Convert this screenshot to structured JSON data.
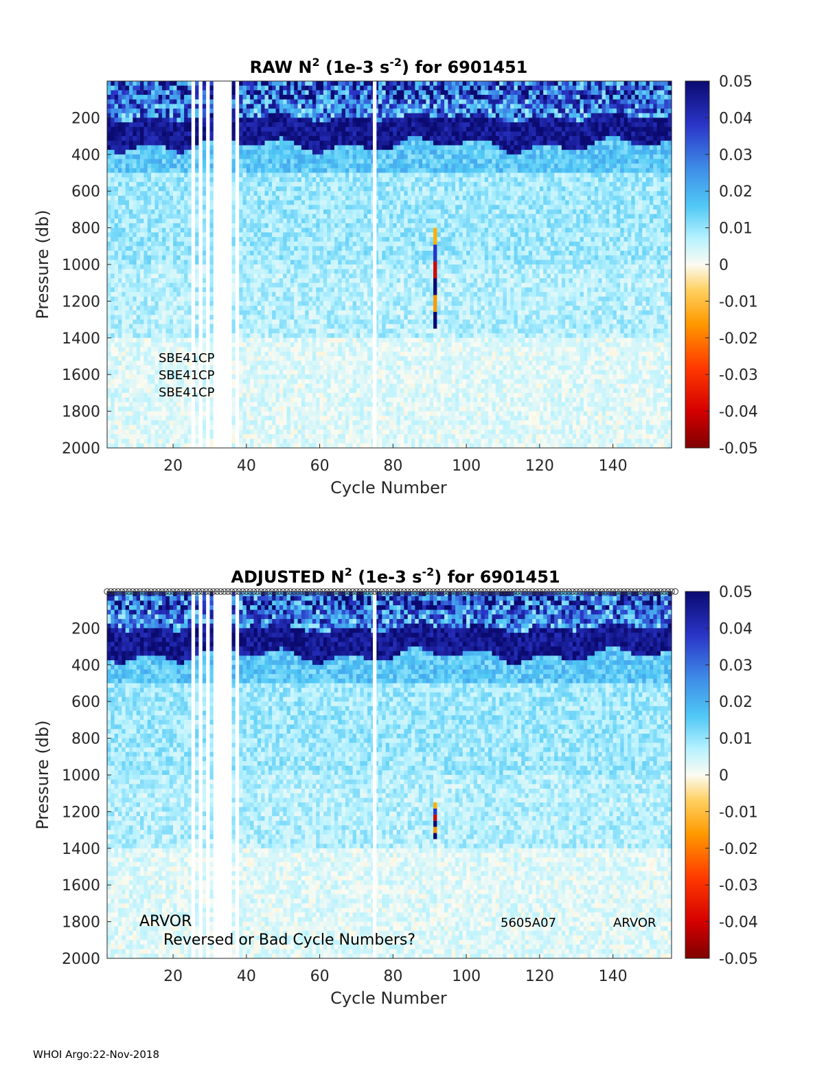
{
  "footer": "WHOI Argo:22-Nov-2018",
  "colorbar": {
    "ticks": [
      "0.05",
      "0.04",
      "0.03",
      "0.02",
      "0.01",
      "0",
      "-0.01",
      "-0.02",
      "-0.03",
      "-0.04",
      "-0.05"
    ],
    "range": [
      -0.05,
      0.05
    ]
  },
  "chart_data": [
    {
      "type": "heatmap",
      "title": {
        "prefix": "RAW N",
        "sup1": "2",
        "mid": " (1e-3 s",
        "sup2": "-2",
        "suffix": ") for 6901451"
      },
      "xlabel": "Cycle Number",
      "ylabel": "Pressure (db)",
      "xlim": [
        2,
        156
      ],
      "ylim": [
        0,
        2000
      ],
      "y_reversed": true,
      "xticks": [
        "20",
        "40",
        "60",
        "80",
        "100",
        "120",
        "140"
      ],
      "yticks": [
        "200",
        "400",
        "600",
        "800",
        "1000",
        "1200",
        "1400",
        "1600",
        "1800",
        "2000"
      ],
      "colormap": "blue-cyan-white-orange-red",
      "clim": [
        -0.05,
        0.05
      ],
      "features": {
        "strong_stratification_layer_db": [
          200,
          350
        ],
        "surface_layer_db": [
          0,
          100
        ],
        "data_gap_cycles": [
          [
            25,
            26
          ],
          [
            27,
            28
          ],
          [
            29,
            30
          ],
          [
            31,
            36
          ],
          [
            37,
            38
          ],
          [
            74.5,
            75.5
          ]
        ],
        "anomaly_cycle": 91,
        "anomaly_db": [
          800,
          1350
        ]
      },
      "annotations": [
        "SBE41CP",
        "SBE41CP",
        "SBE41CP"
      ]
    },
    {
      "type": "heatmap",
      "title": {
        "prefix": "ADJUSTED N",
        "sup1": "2",
        "mid": " (1e-3 s",
        "sup2": "-2",
        "suffix": ") for 6901451"
      },
      "xlabel": "Cycle Number",
      "ylabel": "Pressure (db)",
      "xlim": [
        2,
        156
      ],
      "ylim": [
        0,
        2000
      ],
      "y_reversed": true,
      "xticks": [
        "20",
        "40",
        "60",
        "80",
        "100",
        "120",
        "140"
      ],
      "yticks": [
        "200",
        "400",
        "600",
        "800",
        "1000",
        "1200",
        "1400",
        "1600",
        "1800",
        "2000"
      ],
      "colormap": "blue-cyan-white-orange-red",
      "clim": [
        -0.05,
        0.05
      ],
      "features": {
        "strong_stratification_layer_db": [
          200,
          350
        ],
        "surface_layer_db": [
          0,
          100
        ],
        "data_gap_cycles": [
          [
            25,
            26
          ],
          [
            27,
            28
          ],
          [
            29,
            30
          ],
          [
            31,
            36
          ],
          [
            37,
            38
          ],
          [
            74.5,
            75.5
          ]
        ],
        "anomaly_cycle": 91,
        "anomaly_db": [
          1150,
          1350
        ]
      },
      "annotations": [
        "ARVOR",
        "Reversed or Bad Cycle Numbers?",
        "5605A07",
        "ARVOR"
      ]
    }
  ]
}
